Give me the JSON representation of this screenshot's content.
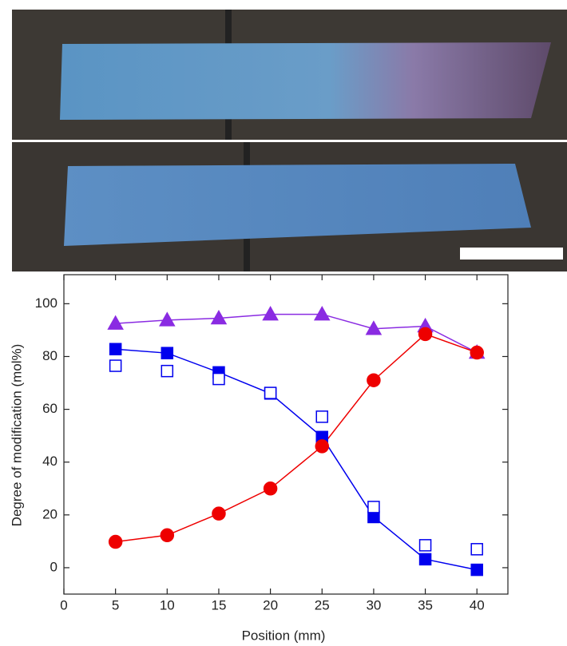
{
  "chart_data": {
    "type": "line",
    "x_label": "Position (mm)",
    "y_label": "Degree of modification (mol%)",
    "x": [
      5,
      10,
      15,
      20,
      25,
      30,
      35,
      40
    ],
    "series": [
      {
        "color": "#8a2be2",
        "marker": "triangle",
        "filled": true,
        "line": true,
        "values": [
          92.5,
          93.8,
          94.5,
          96,
          96,
          90.5,
          91.5,
          81.5
        ]
      },
      {
        "color": "#0000ee",
        "marker": "square",
        "filled": true,
        "line": true,
        "values": [
          82.8,
          81.3,
          74,
          66,
          49.5,
          19.2,
          3.2,
          -0.8
        ]
      },
      {
        "color": "#0000ee",
        "marker": "square",
        "filled": false,
        "line": false,
        "values": [
          76.5,
          74.5,
          71.5,
          66.2,
          57.2,
          23,
          8.5,
          7
        ]
      },
      {
        "color": "#ee0000",
        "marker": "circle",
        "filled": true,
        "line": true,
        "values": [
          9.8,
          12.3,
          20.5,
          30,
          46,
          71,
          88.5,
          81.5
        ]
      }
    ],
    "xlim": [
      0,
      43
    ],
    "xticks": [
      0,
      5,
      10,
      15,
      20,
      25,
      30,
      35,
      40
    ],
    "ylim": [
      -10,
      111
    ],
    "yticks": [
      0,
      20,
      40,
      60,
      80,
      100
    ],
    "grid": false
  }
}
